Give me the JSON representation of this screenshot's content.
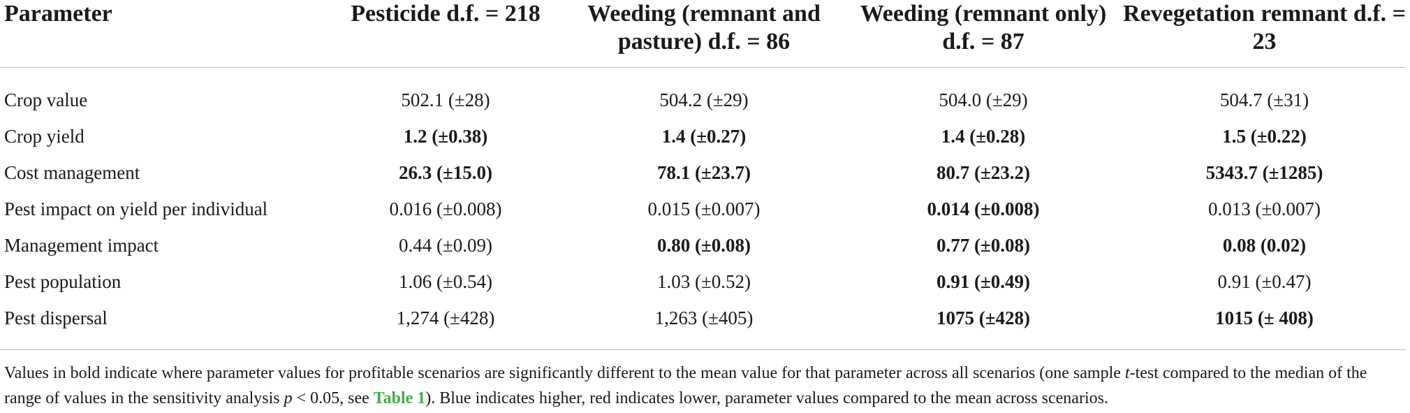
{
  "table": {
    "headers": [
      "Parameter",
      "Pesticide d.f. = 218",
      "Weeding (remnant and pasture) d.f. = 86",
      "Weeding (remnant only) d.f. = 87",
      "Revegetation remnant d.f. = 23"
    ],
    "rows": [
      {
        "parameter": "Crop value",
        "cells": [
          {
            "text": "502.1 (±28)",
            "bold": false
          },
          {
            "text": "504.2 (±29)",
            "bold": false
          },
          {
            "text": "504.0 (±29)",
            "bold": false
          },
          {
            "text": "504.7 (±31)",
            "bold": false
          }
        ]
      },
      {
        "parameter": "Crop yield",
        "cells": [
          {
            "text": "1.2 (±0.38)",
            "bold": true
          },
          {
            "text": "1.4 (±0.27)",
            "bold": true
          },
          {
            "text": "1.4 (±0.28)",
            "bold": true
          },
          {
            "text": "1.5 (±0.22)",
            "bold": true
          }
        ]
      },
      {
        "parameter": "Cost management",
        "cells": [
          {
            "text": "26.3 (±15.0)",
            "bold": true
          },
          {
            "text": "78.1 (±23.7)",
            "bold": true
          },
          {
            "text": "80.7 (±23.2)",
            "bold": true
          },
          {
            "text": "5343.7 (±1285)",
            "bold": true
          }
        ]
      },
      {
        "parameter": "Pest impact on yield per individual",
        "cells": [
          {
            "text": "0.016 (±0.008)",
            "bold": false
          },
          {
            "text": "0.015 (±0.007)",
            "bold": false
          },
          {
            "text": "0.014 (±0.008)",
            "bold": true
          },
          {
            "text": "0.013 (±0.007)",
            "bold": false
          }
        ]
      },
      {
        "parameter": "Management impact",
        "cells": [
          {
            "text": "0.44 (±0.09)",
            "bold": false
          },
          {
            "text": "0.80 (±0.08)",
            "bold": true
          },
          {
            "text": "0.77 (±0.08)",
            "bold": true
          },
          {
            "text": "0.08 (0.02)",
            "bold": true
          }
        ]
      },
      {
        "parameter": "Pest population",
        "cells": [
          {
            "text": "1.06 (±0.54)",
            "bold": false
          },
          {
            "text": "1.03 (±0.52)",
            "bold": false
          },
          {
            "text": "0.91 (±0.49)",
            "bold": true
          },
          {
            "text": "0.91 (±0.47)",
            "bold": false
          }
        ]
      },
      {
        "parameter": "Pest dispersal",
        "cells": [
          {
            "text": "1,274 (±428)",
            "bold": false
          },
          {
            "text": "1,263 (±405)",
            "bold": false
          },
          {
            "text": "1075 (±428)",
            "bold": true
          },
          {
            "text": "1015 (± 408)",
            "bold": true
          }
        ]
      }
    ]
  },
  "footnote": {
    "part1": "Values in bold indicate where parameter values for profitable scenarios are significantly different to the mean value for that parameter across all scenarios (one sample ",
    "t_italic": "t",
    "part2": "-test compared to the median of the range of values in the sensitivity analysis ",
    "p_italic": "p",
    "part3": " < 0.05, see ",
    "link_text": "Table 1",
    "part4": "). Blue indicates higher, red indicates lower, parameter values compared to the mean across scenarios."
  },
  "colors": {
    "text": "#1a1a1a",
    "rule": "#bdbdbd",
    "link": "#4aa84a"
  }
}
